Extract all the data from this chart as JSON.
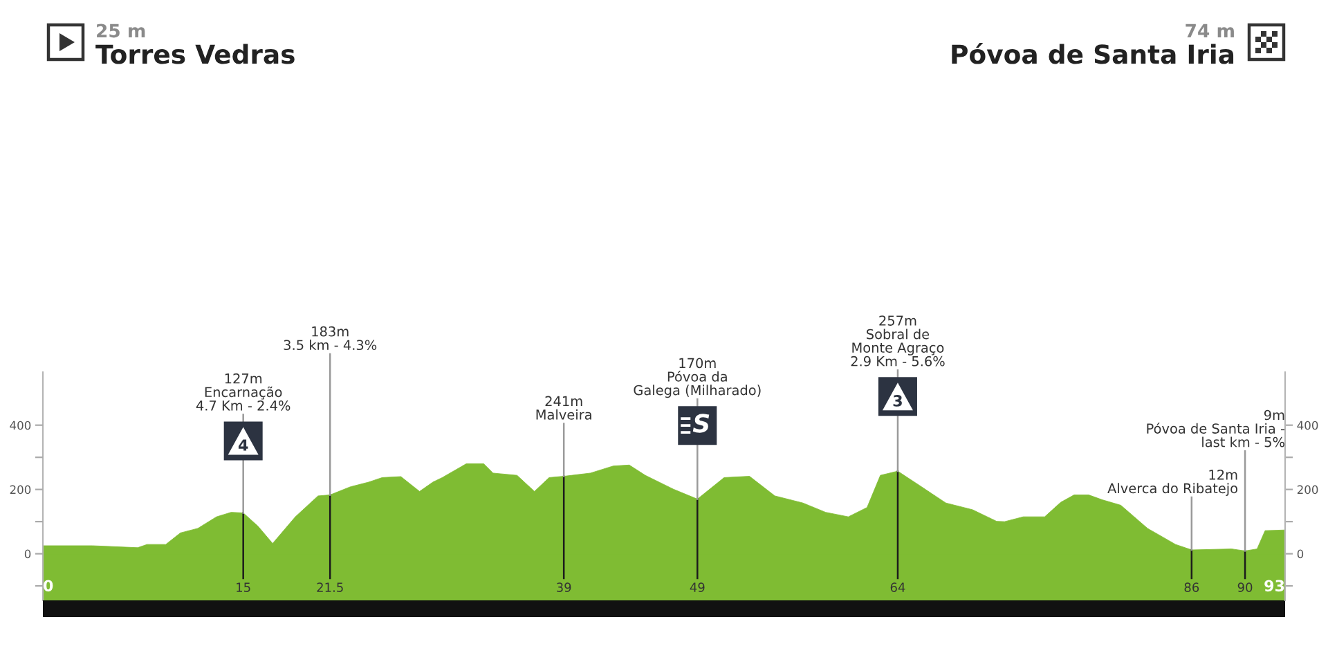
{
  "chart_data": {
    "type": "area",
    "x": [
      0,
      3.7,
      7.1,
      7.8,
      9.2,
      10.3,
      11.6,
      13.0,
      14.1,
      15,
      16.1,
      17.2,
      18.9,
      20.6,
      21.5,
      23.0,
      24.4,
      25.4,
      26.8,
      28.2,
      29.2,
      29.9,
      31.7,
      33.0,
      33.7,
      35.5,
      36.8,
      37.9,
      39,
      41.0,
      42.7,
      43.9,
      45.1,
      47.2,
      49,
      51.0,
      52.9,
      54.8,
      56.9,
      58.6,
      60.3,
      61.7,
      62.7,
      64,
      65.5,
      67.6,
      69.6,
      71.4,
      72.0,
      73.4,
      75.0,
      76.2,
      77.2,
      78.3,
      79.3,
      80.7,
      82.7,
      84.8,
      86,
      89.0,
      90,
      90.9,
      91.5,
      93
    ],
    "values": [
      25,
      25,
      19,
      29,
      29,
      65,
      79,
      115,
      129,
      127,
      86,
      32,
      115,
      180,
      183,
      208,
      223,
      237,
      240,
      194,
      223,
      237,
      280,
      280,
      251,
      244,
      194,
      237,
      241,
      251,
      273,
      276,
      244,
      201,
      170,
      237,
      241,
      180,
      158,
      129,
      115,
      144,
      244,
      257,
      216,
      158,
      137,
      101,
      100,
      115,
      115,
      160,
      183,
      183,
      168,
      151,
      79,
      29,
      12,
      15,
      9,
      15,
      72,
      74
    ],
    "color": "#7fbc33",
    "xlim": [
      0,
      93
    ],
    "xticks": [
      0,
      15,
      21.5,
      39,
      49,
      64,
      86,
      90,
      93
    ],
    "ylim": [
      -145,
      565
    ],
    "yticks": [
      {
        "value": -100,
        "label": null
      },
      0,
      {
        "value": 100,
        "label": null
      },
      200,
      {
        "value": 300,
        "label": null
      },
      400
    ],
    "y2lim": [
      -145,
      565
    ],
    "y2ticks": [
      {
        "value": -100,
        "label": null
      },
      0,
      {
        "value": 100,
        "label": null
      },
      200,
      {
        "value": 300,
        "label": null
      },
      400
    ],
    "bands": [
      {
        "axis": "y",
        "from": -145,
        "to": 0,
        "color": "#7fbc33"
      }
    ],
    "ref_lines": [
      {
        "axis": "x",
        "value": 15,
        "label": "127m\nEncarnação\n4.7 Km - 2.4%"
      },
      {
        "axis": "x",
        "value": 21.5,
        "label": "183m\n3.5 km - 4.3%"
      },
      {
        "axis": "x",
        "value": 39,
        "label": "241m\nMalveira"
      },
      {
        "axis": "x",
        "value": 49,
        "label": "170m\nPóvoa da\nGalega (Milharado)"
      },
      {
        "axis": "x",
        "value": 64,
        "label": "257m\nSobral de\nMonte Agraço\n2.9 Km - 5.6%"
      },
      {
        "axis": "x",
        "value": 86,
        "label": "12m\nAlverca do Ribatejo"
      },
      {
        "axis": "x",
        "value": 90,
        "label": "9m\nPóvoa de Santa Iria -\nlast km - 5%"
      }
    ],
    "annotations": [
      "25 m",
      "Torres Vedras",
      "74 m",
      "Póvoa de Santa Iria",
      {
        "text": "4",
        "x": 15,
        "y": 351
      },
      {
        "text": "S",
        "x": 49,
        "y": 399
      },
      {
        "text": "3",
        "x": 64,
        "y": 489
      }
    ]
  }
}
